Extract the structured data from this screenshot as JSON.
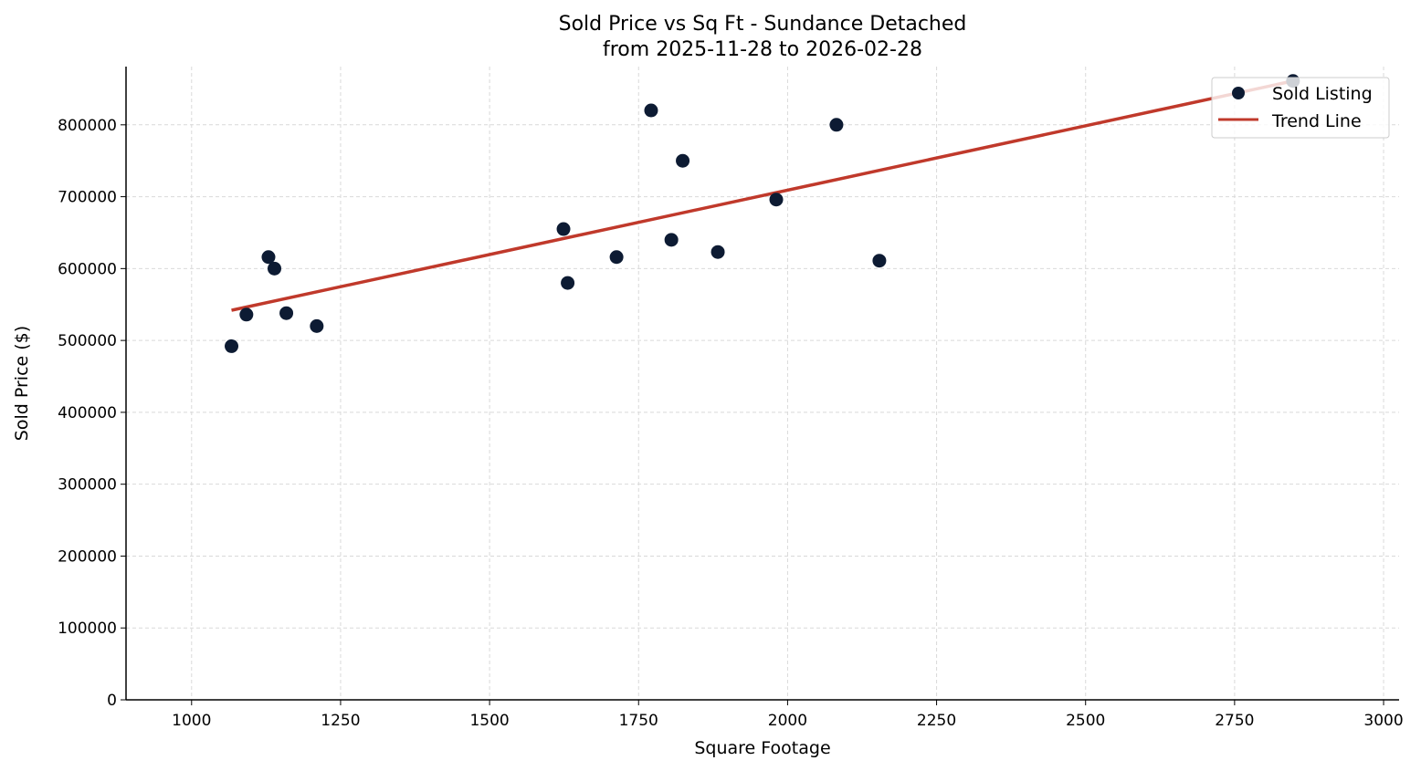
{
  "chart_data": {
    "type": "scatter",
    "title": "Sold Price vs Sq Ft - Sundance Detached",
    "subtitle": "from 2025-11-28 to 2026-02-28",
    "xlabel": "Square Footage",
    "ylabel": "Sold Price ($)",
    "xlim": [
      890,
      3026
    ],
    "ylim": [
      0,
      881000
    ],
    "xticks": [
      1000,
      1250,
      1500,
      1750,
      2000,
      2250,
      2500,
      2750,
      3000
    ],
    "yticks": [
      0,
      100000,
      200000,
      300000,
      400000,
      500000,
      600000,
      700000,
      800000
    ],
    "grid": true,
    "legend_placement": "top-right",
    "series": [
      {
        "name": "Sold Listing",
        "kind": "scatter",
        "color": "#0d1b33",
        "points": [
          [
            1067,
            492000
          ],
          [
            1092,
            536000
          ],
          [
            1129,
            616000
          ],
          [
            1139,
            600000
          ],
          [
            1159,
            538000
          ],
          [
            1210,
            520000
          ],
          [
            1624,
            655000
          ],
          [
            1631,
            580000
          ],
          [
            1713,
            616000
          ],
          [
            1771,
            820000
          ],
          [
            1805,
            640000
          ],
          [
            1824,
            750000
          ],
          [
            1883,
            623000
          ],
          [
            1981,
            696000
          ],
          [
            2082,
            800000
          ],
          [
            2154,
            611000
          ],
          [
            2848,
            861000
          ]
        ]
      },
      {
        "name": "Trend Line",
        "kind": "line",
        "color": "#c0392b",
        "points": [
          [
            1067,
            542000
          ],
          [
            2848,
            861000
          ]
        ]
      }
    ]
  }
}
